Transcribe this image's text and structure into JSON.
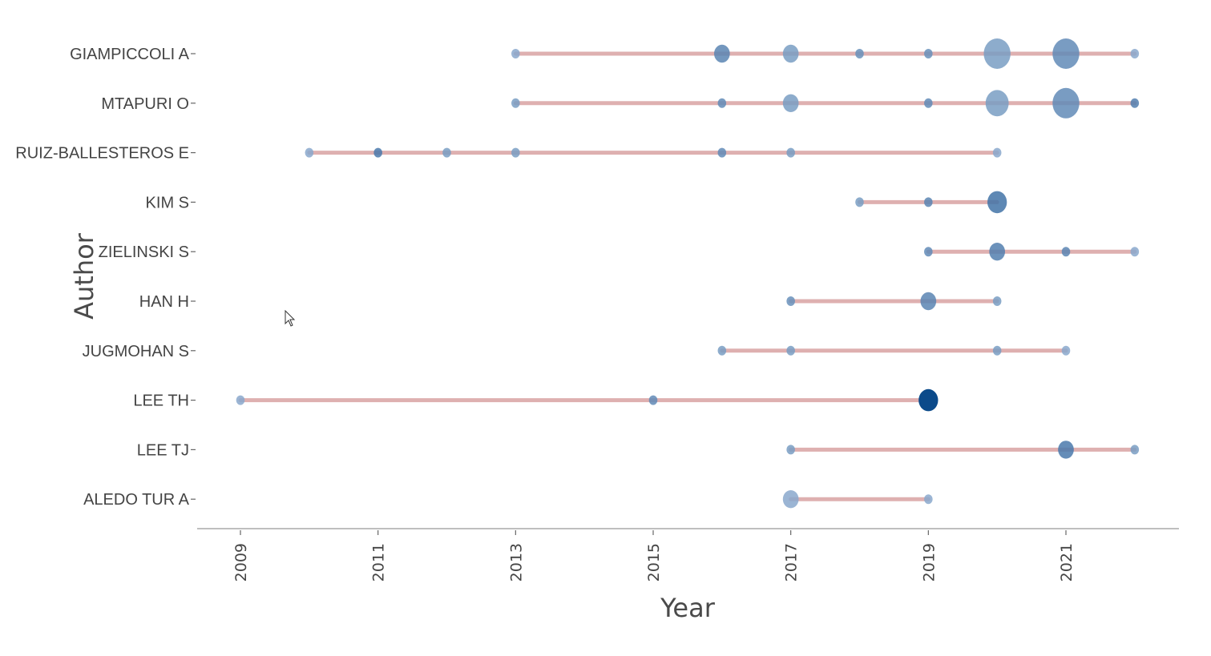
{
  "chart_data": {
    "type": "scatter",
    "xlabel": "Year",
    "ylabel": "Author",
    "xlim": [
      2008.7,
      2022.7
    ],
    "xticks": [
      2009,
      2011,
      2013,
      2015,
      2017,
      2019,
      2021
    ],
    "grid": false,
    "legend": "none",
    "colors": {
      "line": "#d9a3a3",
      "point_light": "#a8c0dc",
      "point_dark": "#0b4a8a"
    },
    "authors": [
      {
        "name": "GIAMPICCOLI A",
        "span": [
          2013,
          2022
        ],
        "points": [
          {
            "year": 2013,
            "size": 1,
            "shade": 0.2
          },
          {
            "year": 2016,
            "size": 3,
            "shade": 0.5
          },
          {
            "year": 2017,
            "size": 3,
            "shade": 0.3
          },
          {
            "year": 2018,
            "size": 1,
            "shade": 0.4
          },
          {
            "year": 2019,
            "size": 1,
            "shade": 0.4
          },
          {
            "year": 2020,
            "size": 6,
            "shade": 0.3
          },
          {
            "year": 2021,
            "size": 6,
            "shade": 0.45
          },
          {
            "year": 2022,
            "size": 1,
            "shade": 0.2
          }
        ]
      },
      {
        "name": "MTAPURI O",
        "span": [
          2013,
          2022
        ],
        "points": [
          {
            "year": 2013,
            "size": 1,
            "shade": 0.3
          },
          {
            "year": 2016,
            "size": 1,
            "shade": 0.45
          },
          {
            "year": 2017,
            "size": 3,
            "shade": 0.3
          },
          {
            "year": 2019,
            "size": 1,
            "shade": 0.45
          },
          {
            "year": 2020,
            "size": 5,
            "shade": 0.3
          },
          {
            "year": 2021,
            "size": 6,
            "shade": 0.45
          },
          {
            "year": 2022,
            "size": 1,
            "shade": 0.55
          }
        ]
      },
      {
        "name": "RUIZ-BALLESTEROS E",
        "span": [
          2010,
          2020
        ],
        "points": [
          {
            "year": 2010,
            "size": 1,
            "shade": 0.2
          },
          {
            "year": 2011,
            "size": 1,
            "shade": 0.6
          },
          {
            "year": 2012,
            "size": 1,
            "shade": 0.3
          },
          {
            "year": 2013,
            "size": 1,
            "shade": 0.3
          },
          {
            "year": 2016,
            "size": 1,
            "shade": 0.45
          },
          {
            "year": 2017,
            "size": 1,
            "shade": 0.3
          },
          {
            "year": 2020,
            "size": 1,
            "shade": 0.2
          }
        ]
      },
      {
        "name": "KIM S",
        "span": [
          2018,
          2020
        ],
        "points": [
          {
            "year": 2018,
            "size": 1,
            "shade": 0.3
          },
          {
            "year": 2019,
            "size": 1,
            "shade": 0.5
          },
          {
            "year": 2020,
            "size": 4,
            "shade": 0.65
          }
        ]
      },
      {
        "name": "ZIELINSKI S",
        "span": [
          2019,
          2022
        ],
        "points": [
          {
            "year": 2019,
            "size": 1,
            "shade": 0.45
          },
          {
            "year": 2020,
            "size": 3,
            "shade": 0.55
          },
          {
            "year": 2021,
            "size": 1,
            "shade": 0.5
          },
          {
            "year": 2022,
            "size": 1,
            "shade": 0.2
          }
        ]
      },
      {
        "name": "HAN H",
        "span": [
          2017,
          2020
        ],
        "points": [
          {
            "year": 2017,
            "size": 1,
            "shade": 0.4
          },
          {
            "year": 2019,
            "size": 3,
            "shade": 0.5
          },
          {
            "year": 2020,
            "size": 1,
            "shade": 0.3
          }
        ]
      },
      {
        "name": "JUGMOHAN S",
        "span": [
          2016,
          2021
        ],
        "points": [
          {
            "year": 2016,
            "size": 1,
            "shade": 0.3
          },
          {
            "year": 2017,
            "size": 1,
            "shade": 0.3
          },
          {
            "year": 2020,
            "size": 1,
            "shade": 0.3
          },
          {
            "year": 2021,
            "size": 1,
            "shade": 0.2
          }
        ]
      },
      {
        "name": "LEE TH",
        "span": [
          2009,
          2019
        ],
        "points": [
          {
            "year": 2009,
            "size": 1,
            "shade": 0.2
          },
          {
            "year": 2015,
            "size": 1,
            "shade": 0.45
          },
          {
            "year": 2019,
            "size": 4,
            "shade": 1.0
          }
        ]
      },
      {
        "name": "LEE TJ",
        "span": [
          2017,
          2022
        ],
        "points": [
          {
            "year": 2017,
            "size": 1,
            "shade": 0.3
          },
          {
            "year": 2021,
            "size": 3,
            "shade": 0.6
          },
          {
            "year": 2022,
            "size": 1,
            "shade": 0.3
          }
        ]
      },
      {
        "name": "ALEDO TUR A",
        "span": [
          2017,
          2019
        ],
        "points": [
          {
            "year": 2017,
            "size": 3,
            "shade": 0.2
          },
          {
            "year": 2019,
            "size": 1,
            "shade": 0.2
          }
        ]
      }
    ]
  }
}
